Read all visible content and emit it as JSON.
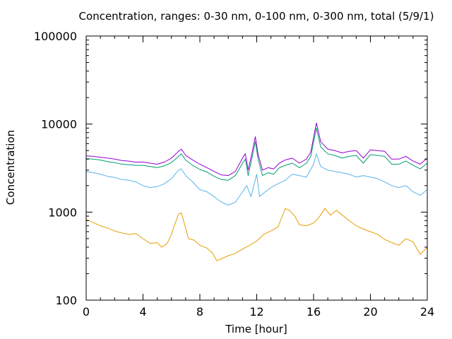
{
  "chart_data": {
    "type": "line",
    "title": "Concentration, ranges: 0-30 nm, 0-100 nm, 0-300 nm, total (5/9/1)",
    "xlabel": "Time [hour]",
    "ylabel": "Concentration",
    "xlim": [
      0,
      24
    ],
    "ylim": [
      100,
      100000
    ],
    "yscale": "log",
    "grid": false,
    "legend": "none",
    "xticks": [
      0,
      4,
      8,
      12,
      16,
      20,
      24
    ],
    "xtick_labels": [
      "0",
      "4",
      "8",
      "12",
      "16",
      "20",
      "24"
    ],
    "yticks": [
      100,
      1000,
      10000,
      100000
    ],
    "ytick_labels": [
      "100",
      "1000",
      "10000",
      "100000"
    ],
    "colors": [
      "#e69f00",
      "#56b4e9",
      "#009e73",
      "#9400d3"
    ],
    "series": [
      {
        "points": [
          [
            0,
            830
          ],
          [
            0.5,
            760
          ],
          [
            1,
            700
          ],
          [
            1.5,
            660
          ],
          [
            2,
            610
          ],
          [
            2.5,
            580
          ],
          [
            3,
            560
          ],
          [
            3.5,
            570
          ],
          [
            4,
            500
          ],
          [
            4.5,
            440
          ],
          [
            5,
            450
          ],
          [
            5.3,
            400
          ],
          [
            5.7,
            440
          ],
          [
            6,
            560
          ],
          [
            6.2,
            700
          ],
          [
            6.5,
            950
          ],
          [
            6.7,
            980
          ],
          [
            6.9,
            750
          ],
          [
            7.2,
            500
          ],
          [
            7.6,
            480
          ],
          [
            8,
            420
          ],
          [
            8.5,
            390
          ],
          [
            8.9,
            340
          ],
          [
            9.2,
            280
          ],
          [
            9.6,
            300
          ],
          [
            10,
            320
          ],
          [
            10.5,
            340
          ],
          [
            11,
            380
          ],
          [
            11.5,
            420
          ],
          [
            12,
            470
          ],
          [
            12.5,
            560
          ],
          [
            13,
            610
          ],
          [
            13.5,
            680
          ],
          [
            13.8,
            900
          ],
          [
            14,
            1100
          ],
          [
            14.3,
            1050
          ],
          [
            14.7,
            890
          ],
          [
            15,
            720
          ],
          [
            15.5,
            700
          ],
          [
            16,
            750
          ],
          [
            16.4,
            880
          ],
          [
            16.8,
            1100
          ],
          [
            17.2,
            920
          ],
          [
            17.6,
            1050
          ],
          [
            18,
            930
          ],
          [
            18.5,
            800
          ],
          [
            19,
            700
          ],
          [
            19.5,
            640
          ],
          [
            20,
            600
          ],
          [
            20.5,
            560
          ],
          [
            21,
            490
          ],
          [
            21.5,
            450
          ],
          [
            22,
            420
          ],
          [
            22.5,
            500
          ],
          [
            23,
            460
          ],
          [
            23.5,
            330
          ],
          [
            24,
            400
          ]
        ]
      },
      {
        "points": [
          [
            0,
            2900
          ],
          [
            0.5,
            2800
          ],
          [
            1,
            2700
          ],
          [
            1.5,
            2550
          ],
          [
            2,
            2480
          ],
          [
            2.5,
            2350
          ],
          [
            3,
            2300
          ],
          [
            3.5,
            2200
          ],
          [
            4,
            2000
          ],
          [
            4.5,
            1900
          ],
          [
            5,
            1950
          ],
          [
            5.5,
            2100
          ],
          [
            6,
            2400
          ],
          [
            6.5,
            3000
          ],
          [
            6.7,
            3100
          ],
          [
            7,
            2600
          ],
          [
            7.5,
            2200
          ],
          [
            8,
            1800
          ],
          [
            8.5,
            1700
          ],
          [
            9,
            1500
          ],
          [
            9.5,
            1300
          ],
          [
            10,
            1200
          ],
          [
            10.5,
            1300
          ],
          [
            11,
            1700
          ],
          [
            11.3,
            2000
          ],
          [
            11.6,
            1500
          ],
          [
            12,
            2700
          ],
          [
            12.2,
            1500
          ],
          [
            12.6,
            1700
          ],
          [
            13,
            1900
          ],
          [
            13.5,
            2100
          ],
          [
            14,
            2300
          ],
          [
            14.5,
            2700
          ],
          [
            15,
            2600
          ],
          [
            15.5,
            2500
          ],
          [
            16,
            3500
          ],
          [
            16.2,
            4600
          ],
          [
            16.5,
            3300
          ],
          [
            17,
            3000
          ],
          [
            17.5,
            2900
          ],
          [
            18,
            2800
          ],
          [
            18.5,
            2700
          ],
          [
            19,
            2500
          ],
          [
            19.5,
            2600
          ],
          [
            20,
            2500
          ],
          [
            20.5,
            2400
          ],
          [
            21,
            2200
          ],
          [
            21.5,
            2000
          ],
          [
            22,
            1900
          ],
          [
            22.5,
            2000
          ],
          [
            23,
            1700
          ],
          [
            23.5,
            1550
          ],
          [
            24,
            1800
          ]
        ]
      },
      {
        "points": [
          [
            0,
            4050
          ],
          [
            0.5,
            4000
          ],
          [
            1,
            3900
          ],
          [
            1.5,
            3750
          ],
          [
            2,
            3650
          ],
          [
            2.5,
            3500
          ],
          [
            3,
            3450
          ],
          [
            3.5,
            3400
          ],
          [
            4,
            3400
          ],
          [
            4.5,
            3300
          ],
          [
            5,
            3200
          ],
          [
            5.5,
            3350
          ],
          [
            6,
            3650
          ],
          [
            6.5,
            4300
          ],
          [
            6.7,
            4600
          ],
          [
            7,
            3900
          ],
          [
            7.5,
            3400
          ],
          [
            8,
            3050
          ],
          [
            8.5,
            2850
          ],
          [
            9,
            2550
          ],
          [
            9.5,
            2350
          ],
          [
            10,
            2300
          ],
          [
            10.5,
            2600
          ],
          [
            11,
            3600
          ],
          [
            11.2,
            4000
          ],
          [
            11.4,
            2600
          ],
          [
            11.7,
            4400
          ],
          [
            11.9,
            6300
          ],
          [
            12.1,
            4000
          ],
          [
            12.4,
            2600
          ],
          [
            12.8,
            2800
          ],
          [
            13.2,
            2700
          ],
          [
            13.6,
            3200
          ],
          [
            14,
            3400
          ],
          [
            14.5,
            3600
          ],
          [
            15,
            3200
          ],
          [
            15.5,
            3600
          ],
          [
            15.8,
            4300
          ],
          [
            16.2,
            9000
          ],
          [
            16.5,
            5500
          ],
          [
            17,
            4600
          ],
          [
            17.5,
            4400
          ],
          [
            18,
            4100
          ],
          [
            18.5,
            4300
          ],
          [
            19,
            4400
          ],
          [
            19.5,
            3600
          ],
          [
            20,
            4500
          ],
          [
            20.5,
            4400
          ],
          [
            21,
            4300
          ],
          [
            21.5,
            3500
          ],
          [
            22,
            3500
          ],
          [
            22.5,
            3800
          ],
          [
            23,
            3400
          ],
          [
            23.5,
            3100
          ],
          [
            24,
            3600
          ]
        ]
      },
      {
        "points": [
          [
            0,
            4350
          ],
          [
            0.5,
            4300
          ],
          [
            1,
            4200
          ],
          [
            1.5,
            4100
          ],
          [
            2,
            4000
          ],
          [
            2.5,
            3850
          ],
          [
            3,
            3800
          ],
          [
            3.5,
            3700
          ],
          [
            4,
            3700
          ],
          [
            4.5,
            3600
          ],
          [
            5,
            3500
          ],
          [
            5.5,
            3700
          ],
          [
            6,
            4100
          ],
          [
            6.5,
            4900
          ],
          [
            6.7,
            5200
          ],
          [
            7,
            4400
          ],
          [
            7.5,
            3900
          ],
          [
            8,
            3500
          ],
          [
            8.5,
            3200
          ],
          [
            9,
            2900
          ],
          [
            9.5,
            2650
          ],
          [
            10,
            2600
          ],
          [
            10.5,
            2900
          ],
          [
            11,
            4100
          ],
          [
            11.2,
            4600
          ],
          [
            11.4,
            3000
          ],
          [
            11.7,
            5000
          ],
          [
            11.9,
            7200
          ],
          [
            12.1,
            4500
          ],
          [
            12.4,
            3000
          ],
          [
            12.8,
            3200
          ],
          [
            13.2,
            3100
          ],
          [
            13.6,
            3600
          ],
          [
            14,
            3900
          ],
          [
            14.5,
            4100
          ],
          [
            15,
            3600
          ],
          [
            15.5,
            4000
          ],
          [
            15.8,
            4800
          ],
          [
            16.2,
            10300
          ],
          [
            16.5,
            6300
          ],
          [
            17,
            5200
          ],
          [
            17.5,
            5000
          ],
          [
            18,
            4700
          ],
          [
            18.5,
            4900
          ],
          [
            19,
            5000
          ],
          [
            19.5,
            4100
          ],
          [
            20,
            5100
          ],
          [
            20.5,
            5000
          ],
          [
            21,
            4900
          ],
          [
            21.5,
            4000
          ],
          [
            22,
            4000
          ],
          [
            22.5,
            4300
          ],
          [
            23,
            3800
          ],
          [
            23.5,
            3500
          ],
          [
            24,
            4100
          ]
        ]
      }
    ]
  }
}
